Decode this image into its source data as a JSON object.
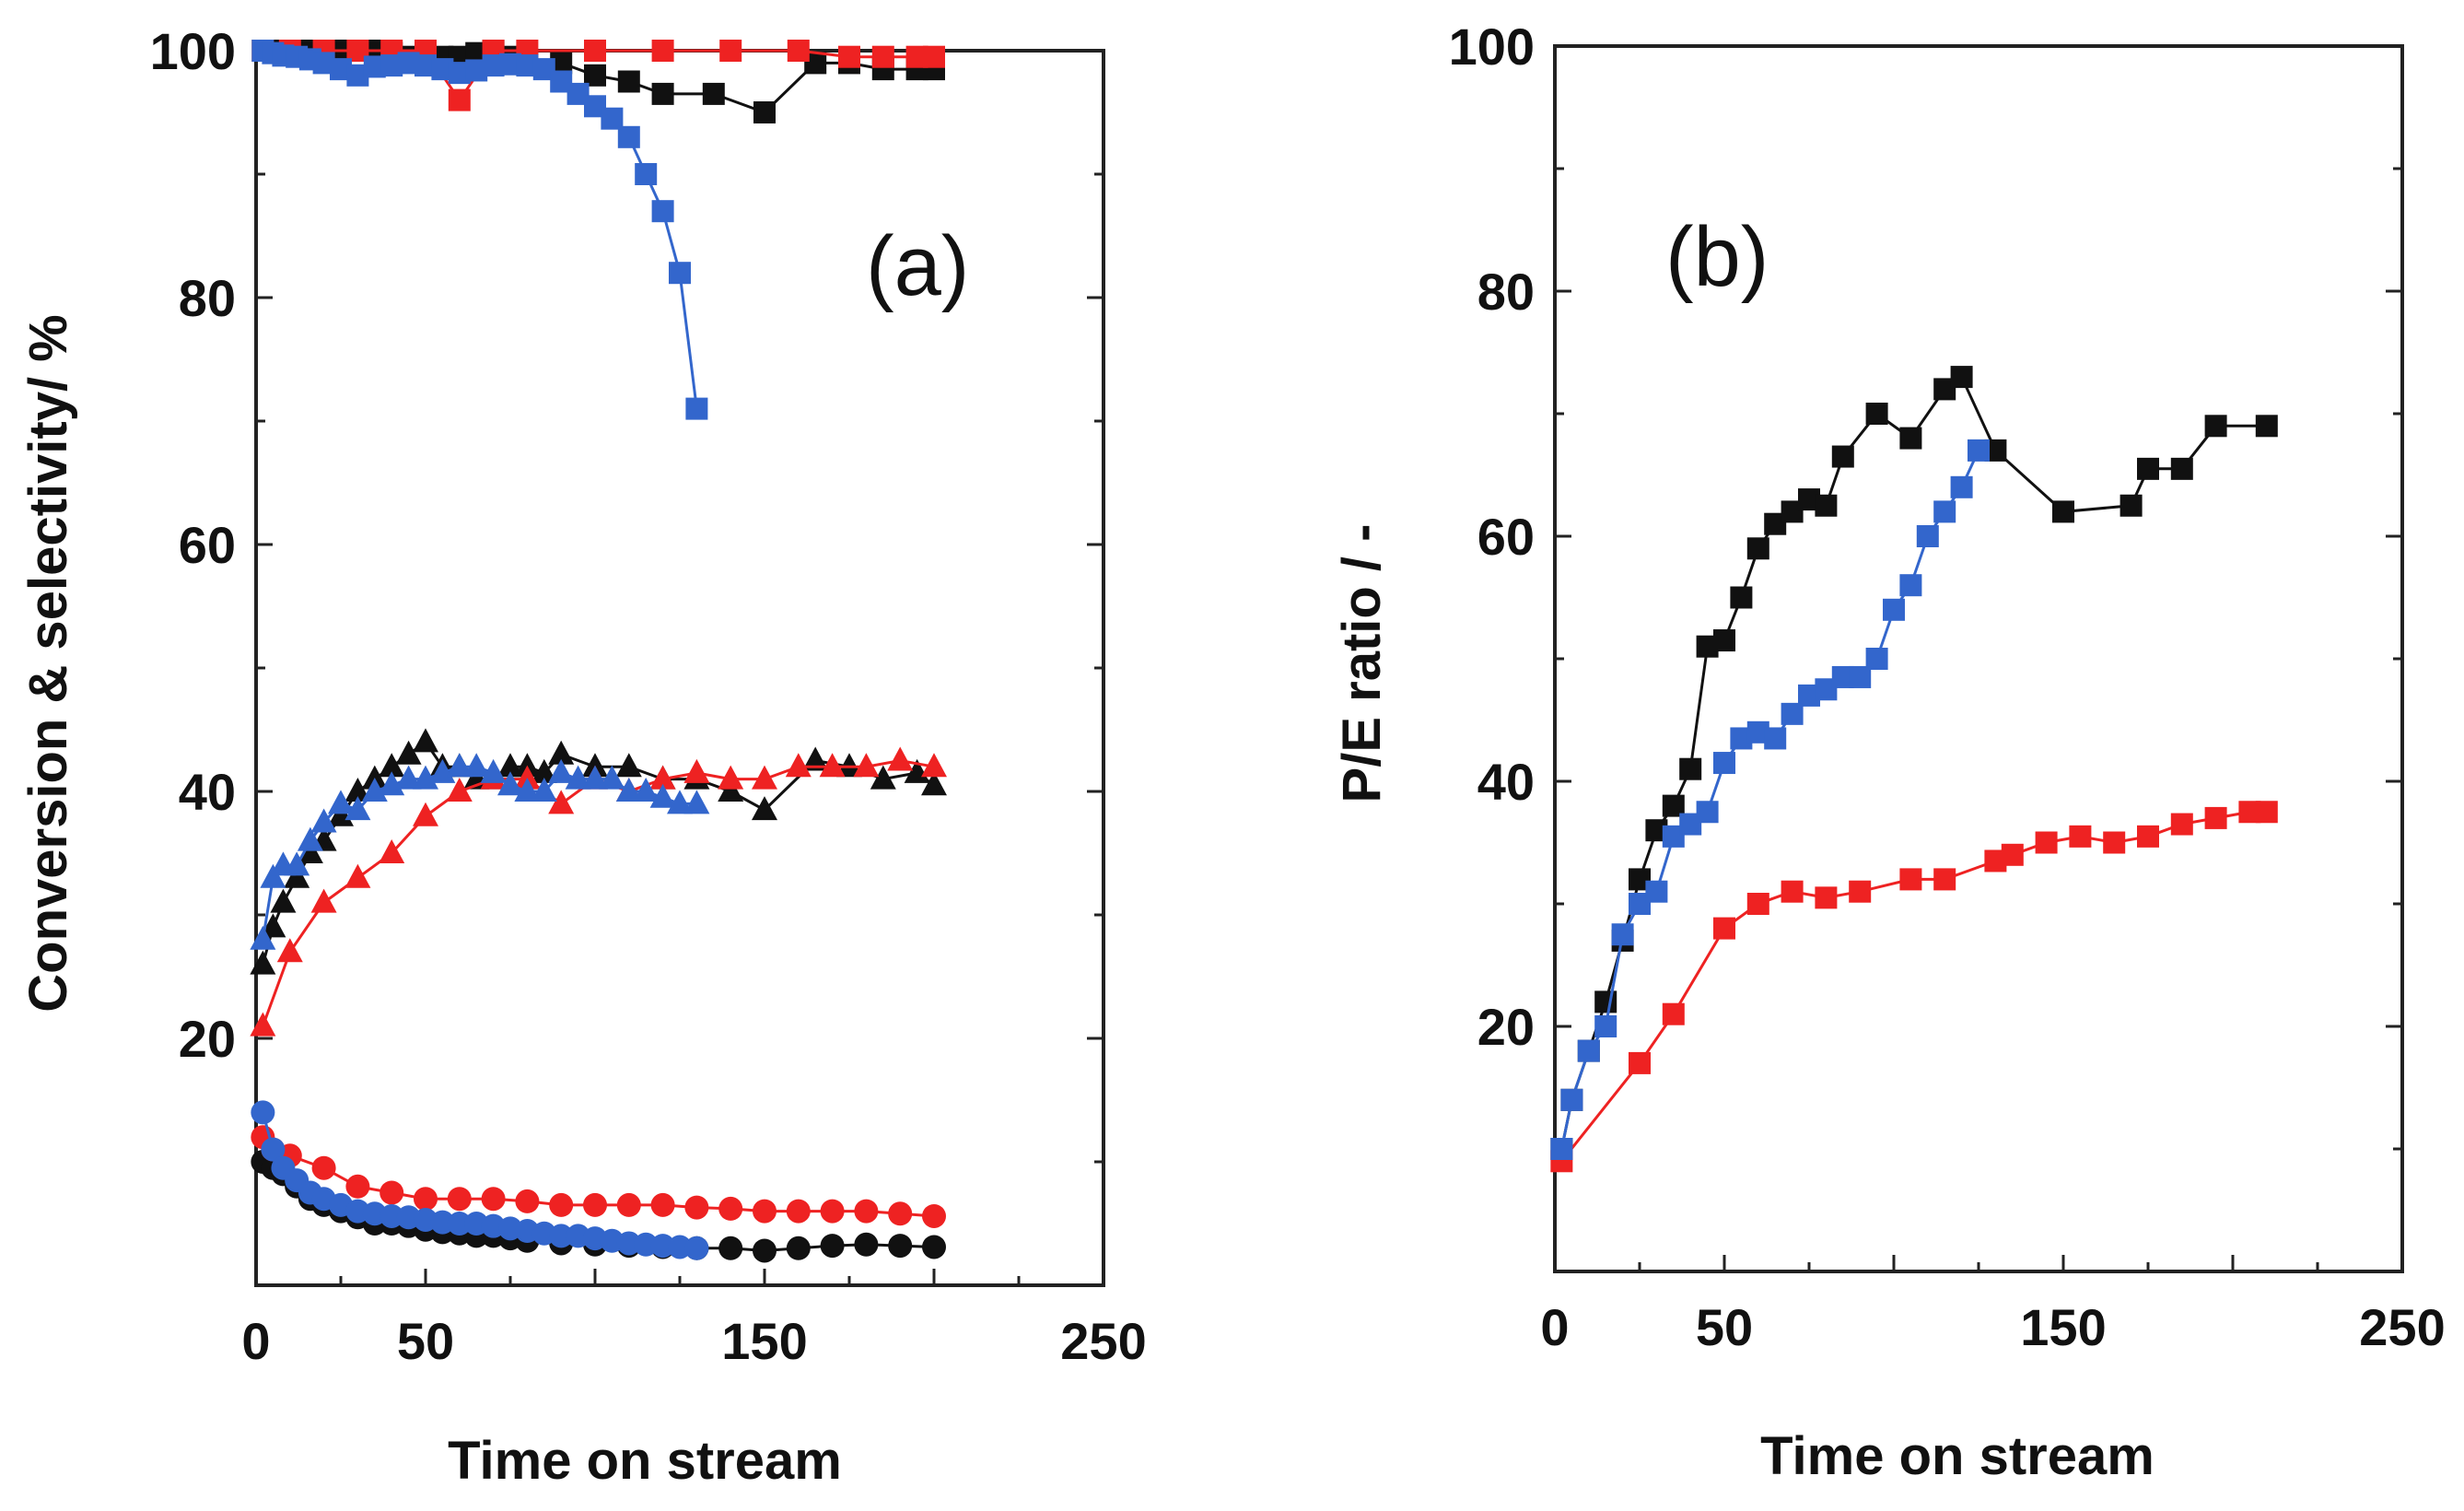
{
  "chart_data": [
    {
      "type": "line",
      "label": "(a)",
      "xlabel": "Time on stream",
      "ylabel": "Conversion & selectivity/ %",
      "xlim": [
        0,
        250
      ],
      "ylim": [
        0,
        100
      ],
      "xticks": [
        0,
        50,
        150,
        250
      ],
      "yticks": [
        20,
        40,
        60,
        80,
        100
      ],
      "series": [
        {
          "name": "black-square",
          "marker": "square",
          "color": "#111111",
          "x": [
            2,
            5,
            8,
            12,
            16,
            20,
            25,
            30,
            35,
            40,
            45,
            50,
            55,
            60,
            65,
            70,
            75,
            80,
            90,
            100,
            110,
            120,
            135,
            150,
            165,
            175,
            185,
            195,
            200
          ],
          "y": [
            100,
            100,
            100,
            100,
            100,
            100,
            100,
            100,
            100,
            99.8,
            99.5,
            99.5,
            99.5,
            99.5,
            99.8,
            100,
            99.5,
            99,
            99,
            98,
            97.5,
            96.5,
            96.5,
            95,
            99,
            99,
            98.5,
            98.5,
            98.5
          ]
        },
        {
          "name": "red-square",
          "marker": "square",
          "color": "#ee2222",
          "x": [
            2,
            10,
            20,
            30,
            40,
            50,
            60,
            70,
            80,
            100,
            120,
            140,
            160,
            175,
            185,
            195,
            200
          ],
          "y": [
            100,
            100,
            100,
            100,
            100,
            100,
            96,
            100,
            100,
            100,
            100,
            100,
            100,
            99.5,
            99.5,
            99.5,
            99.5
          ]
        },
        {
          "name": "blue-square",
          "marker": "square",
          "color": "#3366cc",
          "x": [
            2,
            5,
            8,
            12,
            16,
            20,
            25,
            30,
            35,
            40,
            45,
            50,
            55,
            60,
            65,
            70,
            75,
            80,
            85,
            90,
            95,
            100,
            105,
            110,
            115,
            120,
            125,
            130
          ],
          "y": [
            100,
            99.8,
            99.6,
            99.5,
            99.3,
            99,
            98.5,
            98,
            98.7,
            98.8,
            99,
            98.8,
            98.5,
            98.2,
            98.4,
            98.8,
            98.9,
            98.8,
            98.5,
            97.5,
            96.5,
            95.5,
            94.5,
            93,
            90,
            87,
            82,
            71
          ]
        },
        {
          "name": "black-triangle",
          "marker": "triangle",
          "color": "#111111",
          "x": [
            2,
            5,
            8,
            12,
            16,
            20,
            25,
            30,
            35,
            40,
            45,
            50,
            55,
            60,
            65,
            70,
            75,
            80,
            85,
            90,
            100,
            110,
            120,
            130,
            140,
            150,
            165,
            175,
            185,
            195,
            200
          ],
          "y": [
            26,
            29,
            31,
            33,
            35,
            36,
            38,
            40,
            41,
            42,
            43,
            44,
            42,
            42,
            41,
            41,
            42,
            42,
            41.5,
            43,
            42,
            42,
            41,
            41,
            40,
            38.5,
            42.5,
            42,
            41,
            41.5,
            40.5
          ]
        },
        {
          "name": "red-triangle",
          "marker": "triangle",
          "color": "#ee2222",
          "x": [
            2,
            10,
            20,
            30,
            40,
            50,
            60,
            70,
            80,
            90,
            100,
            110,
            120,
            130,
            140,
            150,
            160,
            170,
            180,
            190,
            200
          ],
          "y": [
            21,
            27,
            31,
            33,
            35,
            38,
            40,
            41,
            41,
            39,
            41,
            40,
            41,
            41.5,
            41,
            41,
            42,
            42,
            42,
            42.5,
            42
          ]
        },
        {
          "name": "blue-triangle",
          "marker": "triangle",
          "color": "#3366cc",
          "x": [
            2,
            5,
            8,
            12,
            16,
            20,
            25,
            30,
            35,
            40,
            45,
            50,
            55,
            60,
            65,
            70,
            75,
            80,
            85,
            90,
            95,
            100,
            105,
            110,
            115,
            120,
            125,
            130
          ],
          "y": [
            28,
            33,
            34,
            34,
            36,
            37.5,
            39,
            38.5,
            40,
            40.5,
            41,
            41,
            41.5,
            42,
            42,
            41.5,
            40.5,
            40,
            40,
            41.5,
            41,
            41,
            41,
            40,
            40,
            39.5,
            39,
            39
          ]
        },
        {
          "name": "black-circle",
          "marker": "circle",
          "color": "#111111",
          "x": [
            2,
            5,
            8,
            12,
            16,
            20,
            25,
            30,
            35,
            40,
            45,
            50,
            55,
            60,
            65,
            70,
            75,
            80,
            90,
            100,
            110,
            120,
            130,
            140,
            150,
            160,
            170,
            180,
            190,
            200
          ],
          "y": [
            10,
            9.5,
            9,
            8,
            7,
            6.5,
            6,
            5.5,
            5,
            5,
            4.8,
            4.5,
            4.3,
            4.2,
            4,
            4,
            3.8,
            3.6,
            3.4,
            3.3,
            3.2,
            3.1,
            3,
            3,
            2.8,
            3,
            3.2,
            3.3,
            3.2,
            3.1
          ]
        },
        {
          "name": "red-circle",
          "marker": "circle",
          "color": "#ee2222",
          "x": [
            2,
            5,
            10,
            20,
            30,
            40,
            50,
            60,
            70,
            80,
            90,
            100,
            110,
            120,
            130,
            140,
            150,
            160,
            170,
            180,
            190,
            200
          ],
          "y": [
            12,
            11,
            10.5,
            9.5,
            8,
            7.5,
            7,
            7,
            7,
            6.8,
            6.5,
            6.5,
            6.5,
            6.5,
            6.3,
            6.2,
            6,
            6,
            6,
            6,
            5.8,
            5.6
          ]
        },
        {
          "name": "blue-circle",
          "marker": "circle",
          "color": "#3366cc",
          "x": [
            2,
            5,
            8,
            12,
            16,
            20,
            25,
            30,
            35,
            40,
            45,
            50,
            55,
            60,
            65,
            70,
            75,
            80,
            85,
            90,
            95,
            100,
            105,
            110,
            115,
            120,
            125,
            130
          ],
          "y": [
            14,
            11,
            9.5,
            8.5,
            7.5,
            7,
            6.5,
            6,
            5.8,
            5.6,
            5.5,
            5.3,
            5.1,
            5,
            5,
            4.8,
            4.6,
            4.4,
            4.2,
            4,
            4,
            3.8,
            3.6,
            3.4,
            3.3,
            3.2,
            3.1,
            3
          ]
        }
      ]
    },
    {
      "type": "line",
      "label": "(b)",
      "xlabel": "Time on stream",
      "ylabel": "P/E ratio / -",
      "xlim": [
        0,
        250
      ],
      "ylim": [
        0,
        100
      ],
      "xticks": [
        0,
        50,
        150,
        250
      ],
      "yticks": [
        20,
        40,
        60,
        80,
        100
      ],
      "series": [
        {
          "name": "black-square",
          "marker": "square",
          "color": "#111111",
          "x": [
            2,
            5,
            10,
            15,
            20,
            25,
            30,
            35,
            40,
            45,
            50,
            55,
            60,
            65,
            70,
            75,
            80,
            85,
            95,
            105,
            115,
            120,
            130,
            150,
            170,
            175,
            185,
            195,
            210
          ],
          "y": [
            10,
            14,
            18,
            22,
            27,
            32,
            36,
            38,
            41,
            51,
            51.5,
            55,
            59,
            61,
            62,
            63,
            62.5,
            66.5,
            70,
            68,
            72,
            73,
            67,
            62,
            62.5,
            65.5,
            65.5,
            69,
            69
          ]
        },
        {
          "name": "red-square",
          "marker": "square",
          "color": "#ee2222",
          "x": [
            2,
            25,
            35,
            50,
            60,
            70,
            80,
            90,
            105,
            115,
            130,
            135,
            145,
            155,
            165,
            175,
            185,
            195,
            205,
            210
          ],
          "y": [
            9,
            17,
            21,
            28,
            30,
            31,
            30.5,
            31,
            32,
            32,
            33.5,
            34,
            35,
            35.5,
            35,
            35.5,
            36.5,
            37,
            37.5,
            37.5
          ]
        },
        {
          "name": "blue-square",
          "marker": "square",
          "color": "#3366cc",
          "x": [
            2,
            5,
            10,
            15,
            20,
            25,
            30,
            35,
            40,
            45,
            50,
            55,
            60,
            65,
            70,
            75,
            80,
            85,
            90,
            95,
            100,
            105,
            110,
            115,
            120,
            125
          ],
          "y": [
            10,
            14,
            18,
            20,
            27.5,
            30,
            31,
            35.5,
            36.5,
            37.5,
            41.5,
            43.5,
            44,
            43.5,
            45.5,
            47,
            47.5,
            48.5,
            48.5,
            50,
            54,
            56,
            60,
            62,
            64,
            67
          ]
        }
      ]
    }
  ]
}
